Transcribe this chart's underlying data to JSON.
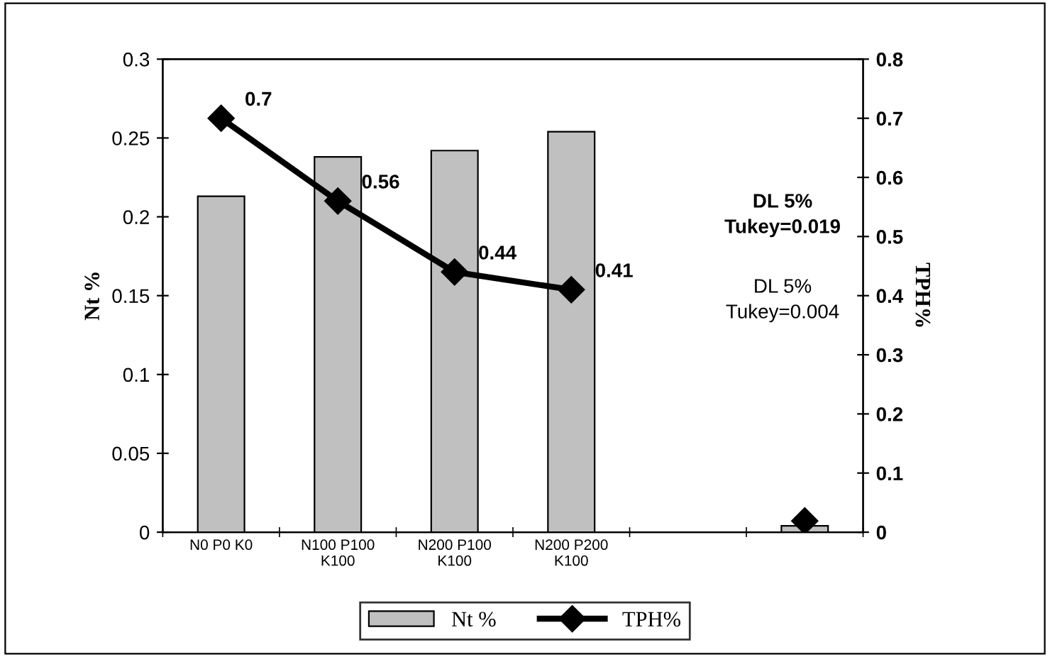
{
  "chart_data": {
    "type": "bar",
    "categories": [
      "N0 P0 K0",
      "N100 P100 K100",
      "N200 P100 K100",
      "N200 P200 K100",
      null,
      null
    ],
    "ylabel": "Nt %",
    "y2label": "TPH%",
    "series": [
      {
        "name": "Nt %",
        "color": "#c0c0c0",
        "values": [
          0.213,
          0.238,
          0.242,
          0.254,
          null,
          0.004
        ]
      },
      {
        "name": "TPH%",
        "type": "line",
        "axis": "y2",
        "color": "#000000",
        "marker": "diamond",
        "values": [
          0.7,
          0.56,
          0.44,
          0.41,
          null,
          0.019
        ],
        "value_labels": [
          "0.7",
          "0.56",
          "0.44",
          "0.41",
          null,
          null
        ]
      }
    ],
    "ylim": [
      0,
      0.3
    ],
    "yticks": [
      0,
      0.05,
      0.1,
      0.15,
      0.2,
      0.25,
      0.3
    ],
    "y2lim": [
      0,
      0.8
    ],
    "y2ticks": [
      0,
      0.1,
      0.2,
      0.3,
      0.4,
      0.5,
      0.6,
      0.7,
      0.8
    ],
    "annotations": [
      "DL 5%\nTukey=0.019",
      "DL 5%\nTukey=0.004"
    ],
    "grid": false,
    "legend": "bottom"
  }
}
